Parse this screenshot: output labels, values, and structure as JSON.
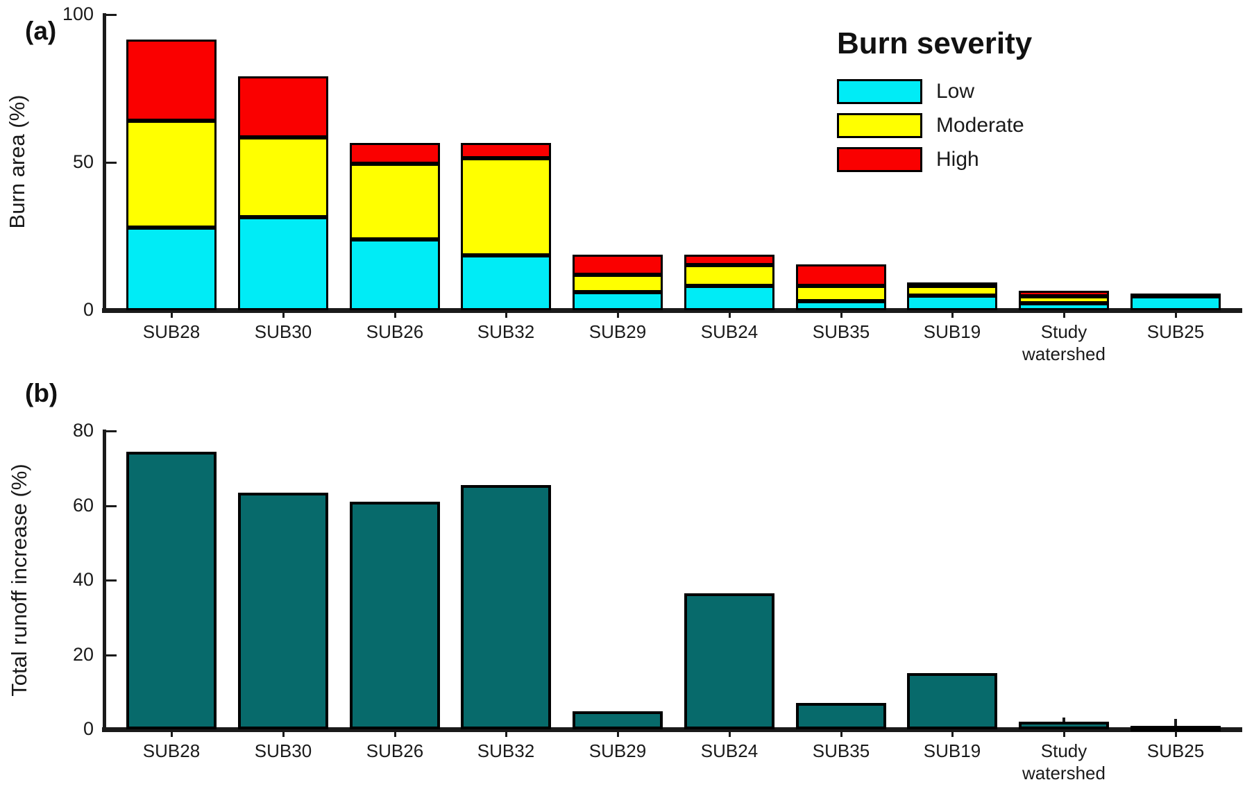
{
  "figure": {
    "background": "#ffffff",
    "text_color": "#1a1a1a"
  },
  "colors": {
    "low": "#00ECF6",
    "moderate": "#FFFF00",
    "high": "#FA0000",
    "runoff_bar": "#076A6B",
    "bar_outline": "#000000",
    "axis": "#1a1a1a"
  },
  "legend": {
    "title": "Burn severity",
    "items": [
      {
        "label": "Low",
        "key": "low"
      },
      {
        "label": "Moderate",
        "key": "moderate"
      },
      {
        "label": "High",
        "key": "high"
      }
    ]
  },
  "chart_data": [
    {
      "id": "a",
      "type": "bar",
      "stacked": true,
      "panel_tag": "(a)",
      "ylabel": "Burn area (%)",
      "yticks": [
        0,
        50,
        100
      ],
      "ylim": [
        0,
        100
      ],
      "grid": false,
      "legend_position": "upper right",
      "categories": [
        "SUB28",
        "SUB30",
        "SUB26",
        "SUB32",
        "SUB29",
        "SUB24",
        "SUB35",
        "SUB19",
        "Study watershed",
        "SUB25"
      ],
      "series": [
        {
          "name": "Low",
          "values": [
            28,
            31.5,
            24,
            18.5,
            6.2,
            8.3,
            3,
            5,
            2.3,
            4.7
          ]
        },
        {
          "name": "Moderate",
          "values": [
            36,
            27,
            25.5,
            33,
            5.8,
            7,
            5.2,
            3.3,
            2.3,
            1
          ]
        },
        {
          "name": "High",
          "values": [
            27.5,
            20.5,
            7,
            5,
            6.7,
            3.5,
            7.3,
            1.2,
            1.9,
            0
          ]
        }
      ]
    },
    {
      "id": "b",
      "type": "bar",
      "stacked": false,
      "panel_tag": "(b)",
      "ylabel": "Total runoff increase (%)",
      "yticks": [
        0,
        20,
        40,
        60,
        80
      ],
      "ylim": [
        0,
        80
      ],
      "grid": false,
      "categories": [
        "SUB28",
        "SUB30",
        "SUB26",
        "SUB32",
        "SUB29",
        "SUB24",
        "SUB35",
        "SUB19",
        "Study watershed",
        "SUB25"
      ],
      "values": [
        74.5,
        63.5,
        61,
        65.5,
        4.8,
        36.5,
        7,
        15,
        2,
        1
      ],
      "whiskers": [
        null,
        null,
        null,
        null,
        null,
        null,
        null,
        null,
        3.2,
        2.8
      ]
    }
  ]
}
